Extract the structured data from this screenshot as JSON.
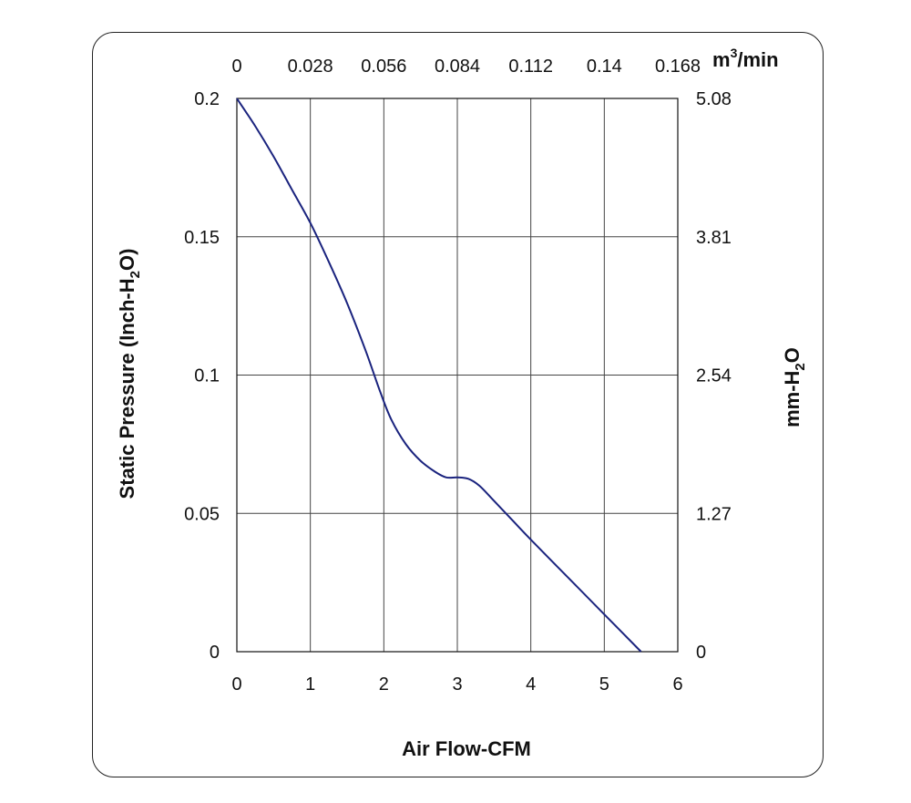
{
  "chart_data": {
    "type": "line",
    "title": "",
    "xlabel": "Air Flow-CFM",
    "ylabel": {
      "base": "Static Pressure (Inch-H",
      "sub": "2",
      "tail": "O)"
    },
    "x2label": {
      "base": "m",
      "sup": "3",
      "tail": "/min"
    },
    "y2label": {
      "base": "mm-H",
      "sub": "2",
      "tail": "O"
    },
    "xlim": [
      0,
      6
    ],
    "ylim": [
      0,
      0.2
    ],
    "x_ticks": [
      "0",
      "1",
      "2",
      "3",
      "4",
      "5",
      "6"
    ],
    "y_ticks": [
      "0",
      "0.05",
      "0.1",
      "0.15",
      "0.2"
    ],
    "x2_ticks": [
      "0",
      "0.028",
      "0.056",
      "0.084",
      "0.112",
      "0.14",
      "0.168"
    ],
    "y2_ticks": [
      "0",
      "1.27",
      "2.54",
      "3.81",
      "5.08"
    ],
    "grid": true,
    "series": [
      {
        "color": "#1a237e",
        "x": [
          0,
          0.25,
          0.5,
          0.75,
          1.0,
          1.25,
          1.5,
          1.75,
          1.95,
          2.1,
          2.3,
          2.5,
          2.7,
          2.85,
          3.0,
          3.15,
          3.3,
          3.5,
          3.75,
          4.0,
          4.5,
          5.0,
          5.5
        ],
        "y": [
          0.2,
          0.19,
          0.179,
          0.167,
          0.155,
          0.141,
          0.126,
          0.109,
          0.094,
          0.084,
          0.075,
          0.069,
          0.065,
          0.063,
          0.063,
          0.0625,
          0.06,
          0.0545,
          0.0475,
          0.0405,
          0.027,
          0.0135,
          0.0
        ]
      }
    ]
  }
}
